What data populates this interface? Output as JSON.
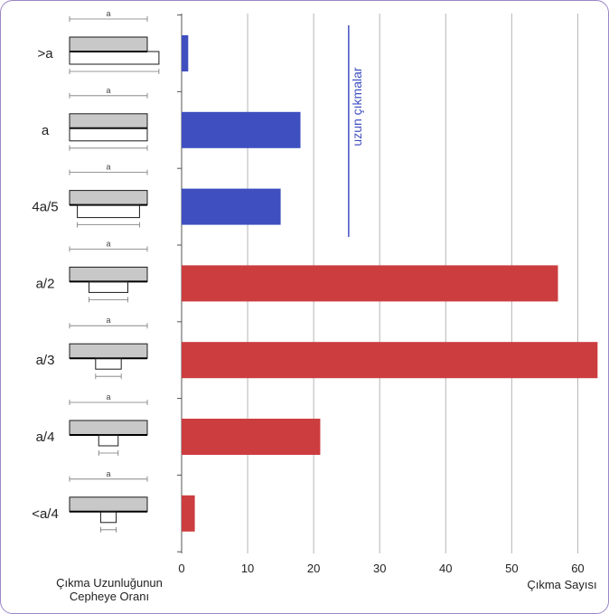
{
  "chart_data": {
    "type": "bar",
    "orientation": "horizontal",
    "categories": [
      ">a",
      "a",
      "4a/5",
      "a/2",
      "a/3",
      "a/4",
      "<a/4"
    ],
    "values": [
      1,
      18,
      15,
      57,
      63,
      21,
      2
    ],
    "series_colors": [
      "#3f4fc0",
      "#3f4fc0",
      "#3f4fc0",
      "#cc3d3f",
      "#cc3d3f",
      "#cc3d3f",
      "#cc3d3f"
    ],
    "xlabel": "Çıkma Sayısı",
    "ylabel_line1": "Çıkma Uzunluğunun",
    "ylabel_line2": "Cepheye Oranı",
    "xlim": [
      0,
      63.5
    ],
    "xticks": [
      0,
      10,
      20,
      30,
      40,
      50,
      60
    ],
    "grid": true,
    "annotation": {
      "text": "uzun çıkmalar",
      "color": "#3f4fc0",
      "x_value": 25.3
    },
    "diagram_label": "a",
    "protrusion_ratios": [
      1.15,
      1.0,
      0.8,
      0.5,
      0.33,
      0.25,
      0.2
    ]
  }
}
